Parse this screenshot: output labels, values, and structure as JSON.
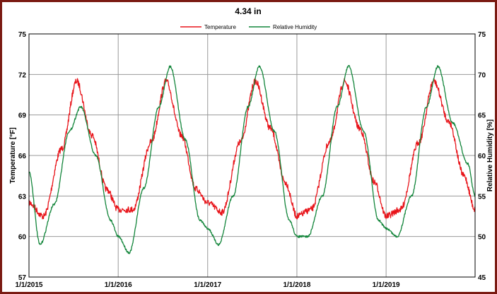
{
  "chart_data": {
    "type": "line",
    "title": "4.34 in",
    "ylabel_left": "Temperature [°F]",
    "ylabel_right": "Relative Humidity [%]",
    "xlabel": "",
    "x_tick_labels": [
      "1/1/2015",
      "1/1/2016",
      "1/1/2017",
      "1/1/2018",
      "1/1/2019"
    ],
    "xlim": [
      "1/1/2015",
      "12/31/2019"
    ],
    "ylim_left": [
      57,
      75
    ],
    "ylim_right": [
      45,
      75
    ],
    "y_ticks_left": [
      57,
      60,
      63,
      66,
      69,
      72,
      75
    ],
    "y_ticks_right": [
      45,
      50,
      55,
      60,
      65,
      70,
      75
    ],
    "grid": true,
    "legend_position": "top-center",
    "series": [
      {
        "name": "Temperature",
        "axis": "left",
        "color": "#e8141a",
        "x": [
          "2015-01-01",
          "2015-03-01",
          "2015-05-15",
          "2015-07-15",
          "2015-09-15",
          "2015-11-15",
          "2016-01-01",
          "2016-03-01",
          "2016-05-15",
          "2016-07-15",
          "2016-09-15",
          "2016-11-15",
          "2017-01-01",
          "2017-03-01",
          "2017-05-15",
          "2017-07-15",
          "2017-09-15",
          "2017-11-15",
          "2018-01-01",
          "2018-03-01",
          "2018-05-15",
          "2018-07-15",
          "2018-09-15",
          "2018-11-15",
          "2019-01-01",
          "2019-03-01",
          "2019-05-15",
          "2019-07-15",
          "2019-09-15",
          "2019-11-15",
          "2019-12-31"
        ],
        "values": [
          62.5,
          61.5,
          66.5,
          71.5,
          67.5,
          63.5,
          62.0,
          62.0,
          67.0,
          71.5,
          67.5,
          63.5,
          62.5,
          61.8,
          67.0,
          71.5,
          68.0,
          64.0,
          61.5,
          62.0,
          67.0,
          71.5,
          68.0,
          64.0,
          61.5,
          62.0,
          67.0,
          71.5,
          68.5,
          64.5,
          62.0
        ]
      },
      {
        "name": "Relative Humidity",
        "axis": "right",
        "color": "#12853a",
        "x": [
          "2015-01-01",
          "2015-02-15",
          "2015-04-15",
          "2015-06-15",
          "2015-08-01",
          "2015-10-01",
          "2015-12-01",
          "2016-01-01",
          "2016-02-15",
          "2016-04-15",
          "2016-06-15",
          "2016-08-01",
          "2016-10-01",
          "2016-12-01",
          "2017-01-01",
          "2017-02-15",
          "2017-04-15",
          "2017-06-15",
          "2017-08-01",
          "2017-10-01",
          "2017-12-01",
          "2018-01-01",
          "2018-02-15",
          "2018-04-15",
          "2018-06-15",
          "2018-08-01",
          "2018-10-01",
          "2018-12-01",
          "2019-01-01",
          "2019-02-15",
          "2019-04-15",
          "2019-06-15",
          "2019-08-01",
          "2019-10-01",
          "2019-12-01",
          "2019-12-31"
        ],
        "values": [
          58,
          49,
          54,
          63,
          66,
          60,
          52,
          50,
          48,
          56,
          66,
          71,
          62,
          52,
          51,
          49,
          55,
          66,
          71,
          63,
          52,
          50,
          50,
          55,
          66,
          71,
          63,
          52,
          51,
          50,
          55,
          66,
          71,
          64,
          59,
          55
        ]
      }
    ]
  }
}
